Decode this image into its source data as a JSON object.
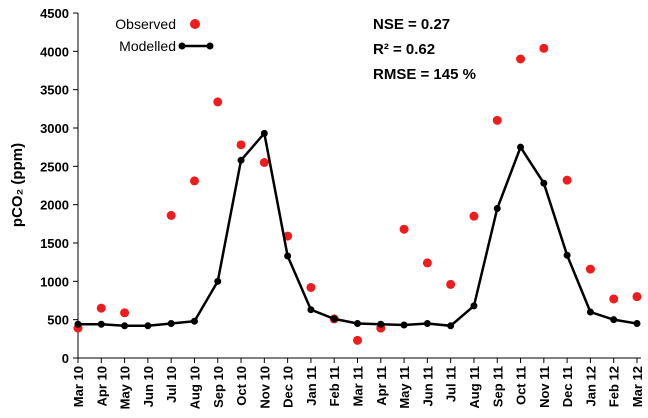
{
  "chart_data": {
    "type": "line",
    "ylabel": "pCO₂ (ppm)",
    "annotations": [
      "NSE = 0.27",
      "R² = 0.62",
      "RMSE = 145 %"
    ],
    "categories": [
      "Mar 10",
      "Apr 10",
      "May 10",
      "Jun 10",
      "Jul 10",
      "Aug 10",
      "Sep 10",
      "Oct 10",
      "Nov 10",
      "Dec 10",
      "Jan 11",
      "Feb 11",
      "Mar 11",
      "Apr 11",
      "May 11",
      "Jun 11",
      "Jul 11",
      "Aug 11",
      "Sep 11",
      "Oct 11",
      "Nov 11",
      "Dec 11",
      "Jan 12",
      "Feb 12",
      "Mar 12"
    ],
    "series": [
      {
        "name": "Observed",
        "color": "#ee1c1c",
        "style": "points",
        "values": [
          390,
          650,
          590,
          null,
          1860,
          2310,
          3340,
          2780,
          2550,
          1590,
          920,
          510,
          230,
          390,
          1680,
          1240,
          960,
          1850,
          3100,
          3900,
          4040,
          2320,
          1160,
          770,
          800
        ]
      },
      {
        "name": "Modelled",
        "color": "#000000",
        "style": "line-points",
        "values": [
          440,
          440,
          420,
          420,
          450,
          480,
          1000,
          2580,
          2930,
          1330,
          630,
          510,
          450,
          440,
          430,
          450,
          420,
          680,
          1950,
          2750,
          2280,
          1340,
          600,
          500,
          450
        ]
      }
    ],
    "ylim": [
      0,
      4500
    ],
    "yticks": [
      0,
      500,
      1000,
      1500,
      2000,
      2500,
      3000,
      3500,
      4000,
      4500
    ],
    "grid": false,
    "legend": "top-left"
  }
}
